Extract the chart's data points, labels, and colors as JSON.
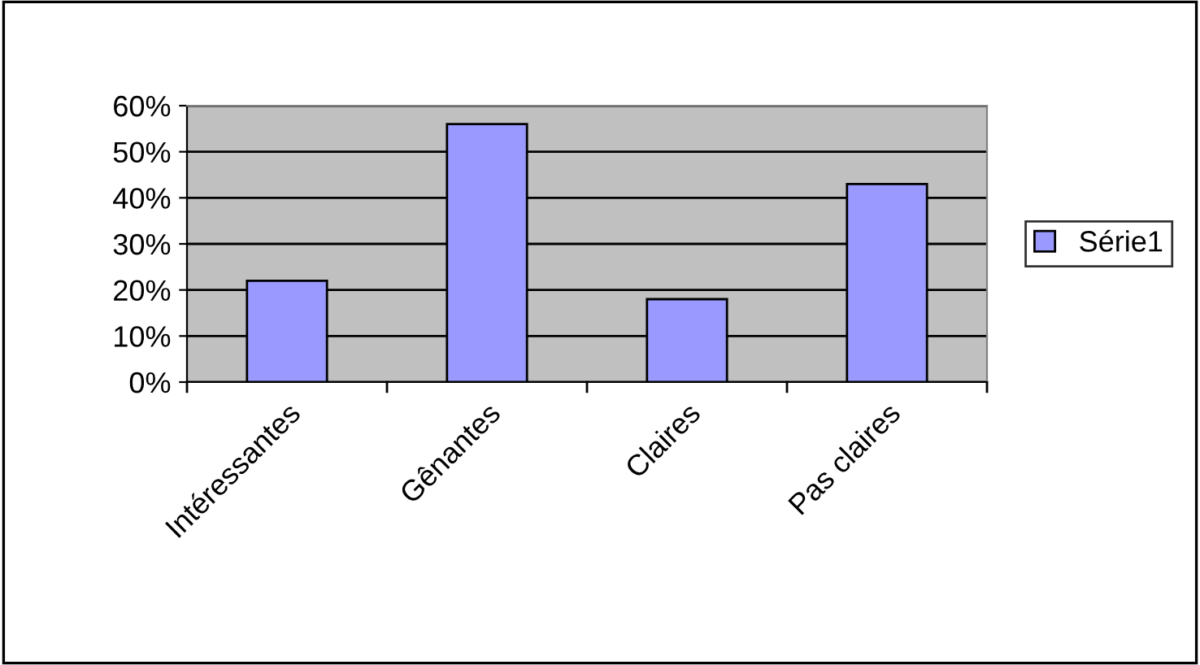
{
  "chart_data": {
    "type": "bar",
    "categories": [
      "Intéressantes",
      "Gênantes",
      "Claires",
      "Pas claires"
    ],
    "series": [
      {
        "name": "Série1",
        "color": "#9999ff",
        "values": [
          22,
          56,
          18,
          43
        ]
      }
    ],
    "ylim": [
      0,
      60
    ],
    "yticks": [
      {
        "value": 0,
        "label": "0%"
      },
      {
        "value": 10,
        "label": "10%"
      },
      {
        "value": 20,
        "label": "20%"
      },
      {
        "value": 30,
        "label": "30%"
      },
      {
        "value": 40,
        "label": "40%"
      },
      {
        "value": 50,
        "label": "50%"
      },
      {
        "value": 60,
        "label": "60%"
      }
    ],
    "grid": "y",
    "legend": "right"
  }
}
